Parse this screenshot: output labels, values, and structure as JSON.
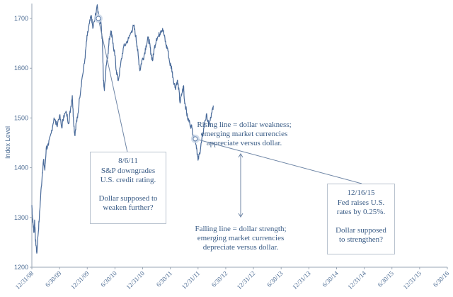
{
  "chart_data": {
    "type": "line",
    "ylabel": "Index Level",
    "ylim": [
      1200,
      1730
    ],
    "yticks": [
      1200,
      1300,
      1400,
      1500,
      1600,
      1700
    ],
    "xticks": [
      "12/31/08",
      "6/30/09",
      "12/31/09",
      "6/30/10",
      "12/31/10",
      "6/30/11",
      "12/31/11",
      "6/30/12",
      "12/31/12",
      "6/30/13",
      "12/31/13",
      "6/30/14",
      "12/31/14",
      "6/30/15",
      "12/31/15",
      "6/30/16"
    ],
    "grid": false,
    "series": [
      {
        "name": "",
        "color": "#4a6b9a",
        "points": [
          [
            0,
            1325
          ],
          [
            0.02,
            1300
          ],
          [
            0.05,
            1285
          ],
          [
            0.08,
            1270
          ],
          [
            0.1,
            1295
          ],
          [
            0.13,
            1255
          ],
          [
            0.16,
            1240
          ],
          [
            0.18,
            1228
          ],
          [
            0.22,
            1262
          ],
          [
            0.27,
            1300
          ],
          [
            0.32,
            1345
          ],
          [
            0.38,
            1390
          ],
          [
            0.42,
            1415
          ],
          [
            0.47,
            1395
          ],
          [
            0.52,
            1440
          ],
          [
            0.6,
            1445
          ],
          [
            0.7,
            1470
          ],
          [
            0.8,
            1500
          ],
          [
            0.9,
            1485
          ],
          [
            1.0,
            1505
          ],
          [
            1.08,
            1480
          ],
          [
            1.15,
            1505
          ],
          [
            1.25,
            1510
          ],
          [
            1.33,
            1490
          ],
          [
            1.4,
            1520
          ],
          [
            1.46,
            1545
          ],
          [
            1.5,
            1500
          ],
          [
            1.55,
            1465
          ],
          [
            1.6,
            1490
          ],
          [
            1.65,
            1500
          ],
          [
            1.72,
            1540
          ],
          [
            1.8,
            1575
          ],
          [
            1.9,
            1610
          ],
          [
            1.95,
            1640
          ],
          [
            2.0,
            1665
          ],
          [
            2.08,
            1690
          ],
          [
            2.15,
            1705
          ],
          [
            2.2,
            1680
          ],
          [
            2.28,
            1700
          ],
          [
            2.35,
            1725
          ],
          [
            2.42,
            1705
          ],
          [
            2.5,
            1690
          ],
          [
            2.55,
            1650
          ],
          [
            2.58,
            1580
          ],
          [
            2.62,
            1555
          ],
          [
            2.68,
            1605
          ],
          [
            2.75,
            1630
          ],
          [
            2.8,
            1660
          ],
          [
            2.85,
            1675
          ],
          [
            2.9,
            1665
          ],
          [
            2.95,
            1640
          ],
          [
            3.0,
            1625
          ],
          [
            3.05,
            1595
          ],
          [
            3.12,
            1575
          ],
          [
            3.2,
            1605
          ],
          [
            3.3,
            1640
          ],
          [
            3.4,
            1650
          ],
          [
            3.5,
            1660
          ],
          [
            3.6,
            1675
          ],
          [
            3.68,
            1685
          ],
          [
            3.75,
            1665
          ],
          [
            3.8,
            1645
          ],
          [
            3.85,
            1620
          ],
          [
            3.9,
            1595
          ],
          [
            3.97,
            1615
          ],
          [
            4.05,
            1625
          ],
          [
            4.12,
            1645
          ],
          [
            4.2,
            1660
          ],
          [
            4.25,
            1650
          ],
          [
            4.3,
            1630
          ],
          [
            4.36,
            1615
          ],
          [
            4.42,
            1640
          ],
          [
            4.5,
            1660
          ],
          [
            4.58,
            1665
          ],
          [
            4.65,
            1675
          ],
          [
            4.72,
            1680
          ],
          [
            4.78,
            1665
          ],
          [
            4.85,
            1645
          ],
          [
            4.9,
            1640
          ],
          [
            4.98,
            1610
          ],
          [
            5.05,
            1600
          ],
          [
            5.1,
            1580
          ],
          [
            5.18,
            1560
          ],
          [
            5.25,
            1575
          ],
          [
            5.3,
            1560
          ],
          [
            5.35,
            1530
          ],
          [
            5.42,
            1550
          ],
          [
            5.48,
            1565
          ],
          [
            5.5,
            1540
          ],
          [
            5.56,
            1520
          ],
          [
            5.62,
            1500
          ],
          [
            5.7,
            1490
          ],
          [
            5.78,
            1480
          ],
          [
            5.84,
            1460
          ],
          [
            5.9,
            1458
          ],
          [
            5.95,
            1440
          ],
          [
            6.0,
            1415
          ],
          [
            6.06,
            1430
          ],
          [
            6.12,
            1450
          ],
          [
            6.18,
            1470
          ],
          [
            6.25,
            1495
          ],
          [
            6.32,
            1505
          ],
          [
            6.38,
            1485
          ],
          [
            6.44,
            1495
          ],
          [
            6.5,
            1510
          ],
          [
            6.55,
            1525
          ]
        ]
      }
    ],
    "highlights": [
      {
        "x": 2.4,
        "y": 1700
      },
      {
        "x": 5.9,
        "y": 1458
      }
    ]
  },
  "annotations": {
    "event1": {
      "line1": "8/6/11",
      "line2": "S&P downgrades",
      "line3": "U.S. credit rating.",
      "line4": "Dollar supposed to",
      "line5": "weaken further?"
    },
    "event2": {
      "line1": "12/16/15",
      "line2": "Fed raises U.S.",
      "line3": "rates by 0.25%.",
      "line4": "Dollar supposed",
      "line5": "to strengthen?"
    },
    "rising": {
      "line1": "Rising line = dollar weakness;",
      "line2": "emerging market currencies",
      "line3": "appreciate versus dollar."
    },
    "falling": {
      "line1": "Falling line = dollar strength;",
      "line2": "emerging market currencies",
      "line3": "depreciate versus dollar."
    }
  }
}
